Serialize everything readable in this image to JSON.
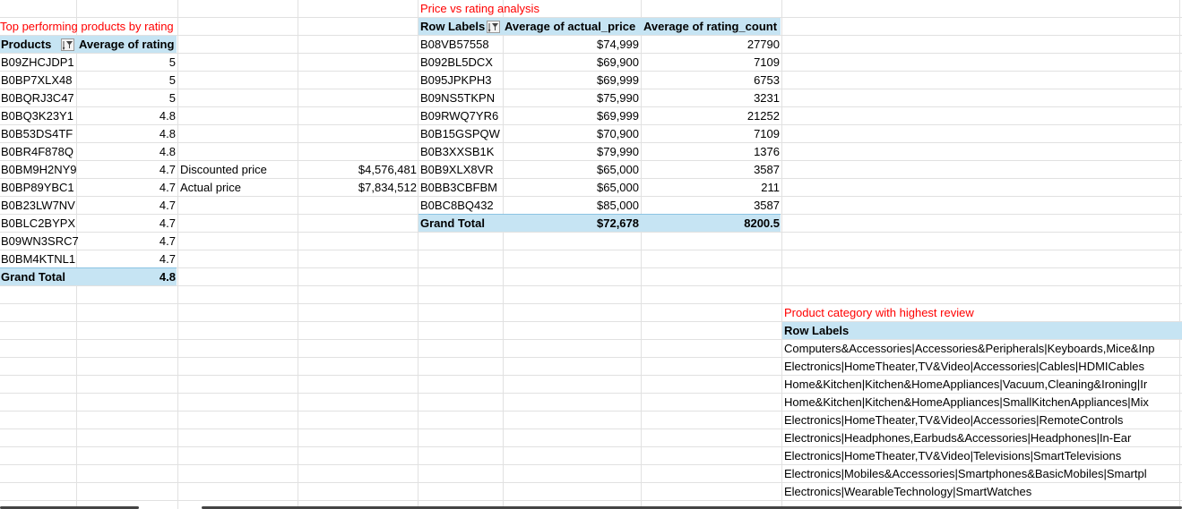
{
  "top_products": {
    "title": "Top performing products by rating",
    "col_products": "Products",
    "col_rating": "Average of rating",
    "rows": [
      {
        "id": "B09ZHCJDP1",
        "rating": "5"
      },
      {
        "id": "B0BP7XLX48",
        "rating": "5"
      },
      {
        "id": "B0BQRJ3C47",
        "rating": "5"
      },
      {
        "id": "B0BQ3K23Y1",
        "rating": "4.8"
      },
      {
        "id": "B0B53DS4TF",
        "rating": "4.8"
      },
      {
        "id": "B0BR4F878Q",
        "rating": "4.8"
      },
      {
        "id": "B0BM9H2NY9",
        "rating": "4.7"
      },
      {
        "id": "B0BP89YBC1",
        "rating": "4.7"
      },
      {
        "id": "B0B23LW7NV",
        "rating": "4.7"
      },
      {
        "id": "B0BLC2BYPX",
        "rating": "4.7"
      },
      {
        "id": "B09WN3SRC7",
        "rating": "4.7"
      },
      {
        "id": "B0BM4KTNL1",
        "rating": "4.7"
      }
    ],
    "grand_total_label": "Grand Total",
    "grand_total_value": "4.8"
  },
  "price_summary": {
    "discounted_label": "Discounted price",
    "discounted_value": "$4,576,481",
    "actual_label": "Actual price",
    "actual_value": "$7,834,512"
  },
  "price_vs_rating": {
    "title": "Price vs rating analysis",
    "col_labels": "Row Labels",
    "col_price": "Average of actual_price",
    "col_count": "Average of rating_count",
    "rows": [
      {
        "id": "B08VB57558",
        "price": "$74,999",
        "count": "27790"
      },
      {
        "id": "B092BL5DCX",
        "price": "$69,900",
        "count": "7109"
      },
      {
        "id": "B095JPKPH3",
        "price": "$69,999",
        "count": "6753"
      },
      {
        "id": "B09NS5TKPN",
        "price": "$75,990",
        "count": "3231"
      },
      {
        "id": "B09RWQ7YR6",
        "price": "$69,999",
        "count": "21252"
      },
      {
        "id": "B0B15GSPQW",
        "price": "$70,900",
        "count": "7109"
      },
      {
        "id": "B0B3XXSB1K",
        "price": "$79,990",
        "count": "1376"
      },
      {
        "id": "B0B9XLX8VR",
        "price": "$65,000",
        "count": "3587"
      },
      {
        "id": "B0BB3CBFBM",
        "price": "$65,000",
        "count": "211"
      },
      {
        "id": "B0BC8BQ432",
        "price": "$85,000",
        "count": "3587"
      }
    ],
    "grand_total_label": "Grand Total",
    "grand_total_price": "$72,678",
    "grand_total_count": "8200.5"
  },
  "category_review": {
    "title": "Product category with highest review",
    "col_labels": "Row Labels",
    "rows": [
      "Computers&Accessories|Accessories&Peripherals|Keyboards,Mice&Inp",
      "Electronics|HomeTheater,TV&Video|Accessories|Cables|HDMICables",
      "Home&Kitchen|Kitchen&HomeAppliances|Vacuum,Cleaning&Ironing|Ir",
      "Home&Kitchen|Kitchen&HomeAppliances|SmallKitchenAppliances|Mix",
      "Electronics|HomeTheater,TV&Video|Accessories|RemoteControls",
      "Electronics|Headphones,Earbuds&Accessories|Headphones|In-Ear",
      "Electronics|HomeTheater,TV&Video|Televisions|SmartTelevisions",
      "Electronics|Mobiles&Accessories|Smartphones&BasicMobiles|Smartpl",
      "Electronics|WearableTechnology|SmartWatches"
    ]
  },
  "colors": {
    "title_red": "#ff0000",
    "header_band": "#c6e4f3",
    "gridline": "#e1e1e1"
  }
}
